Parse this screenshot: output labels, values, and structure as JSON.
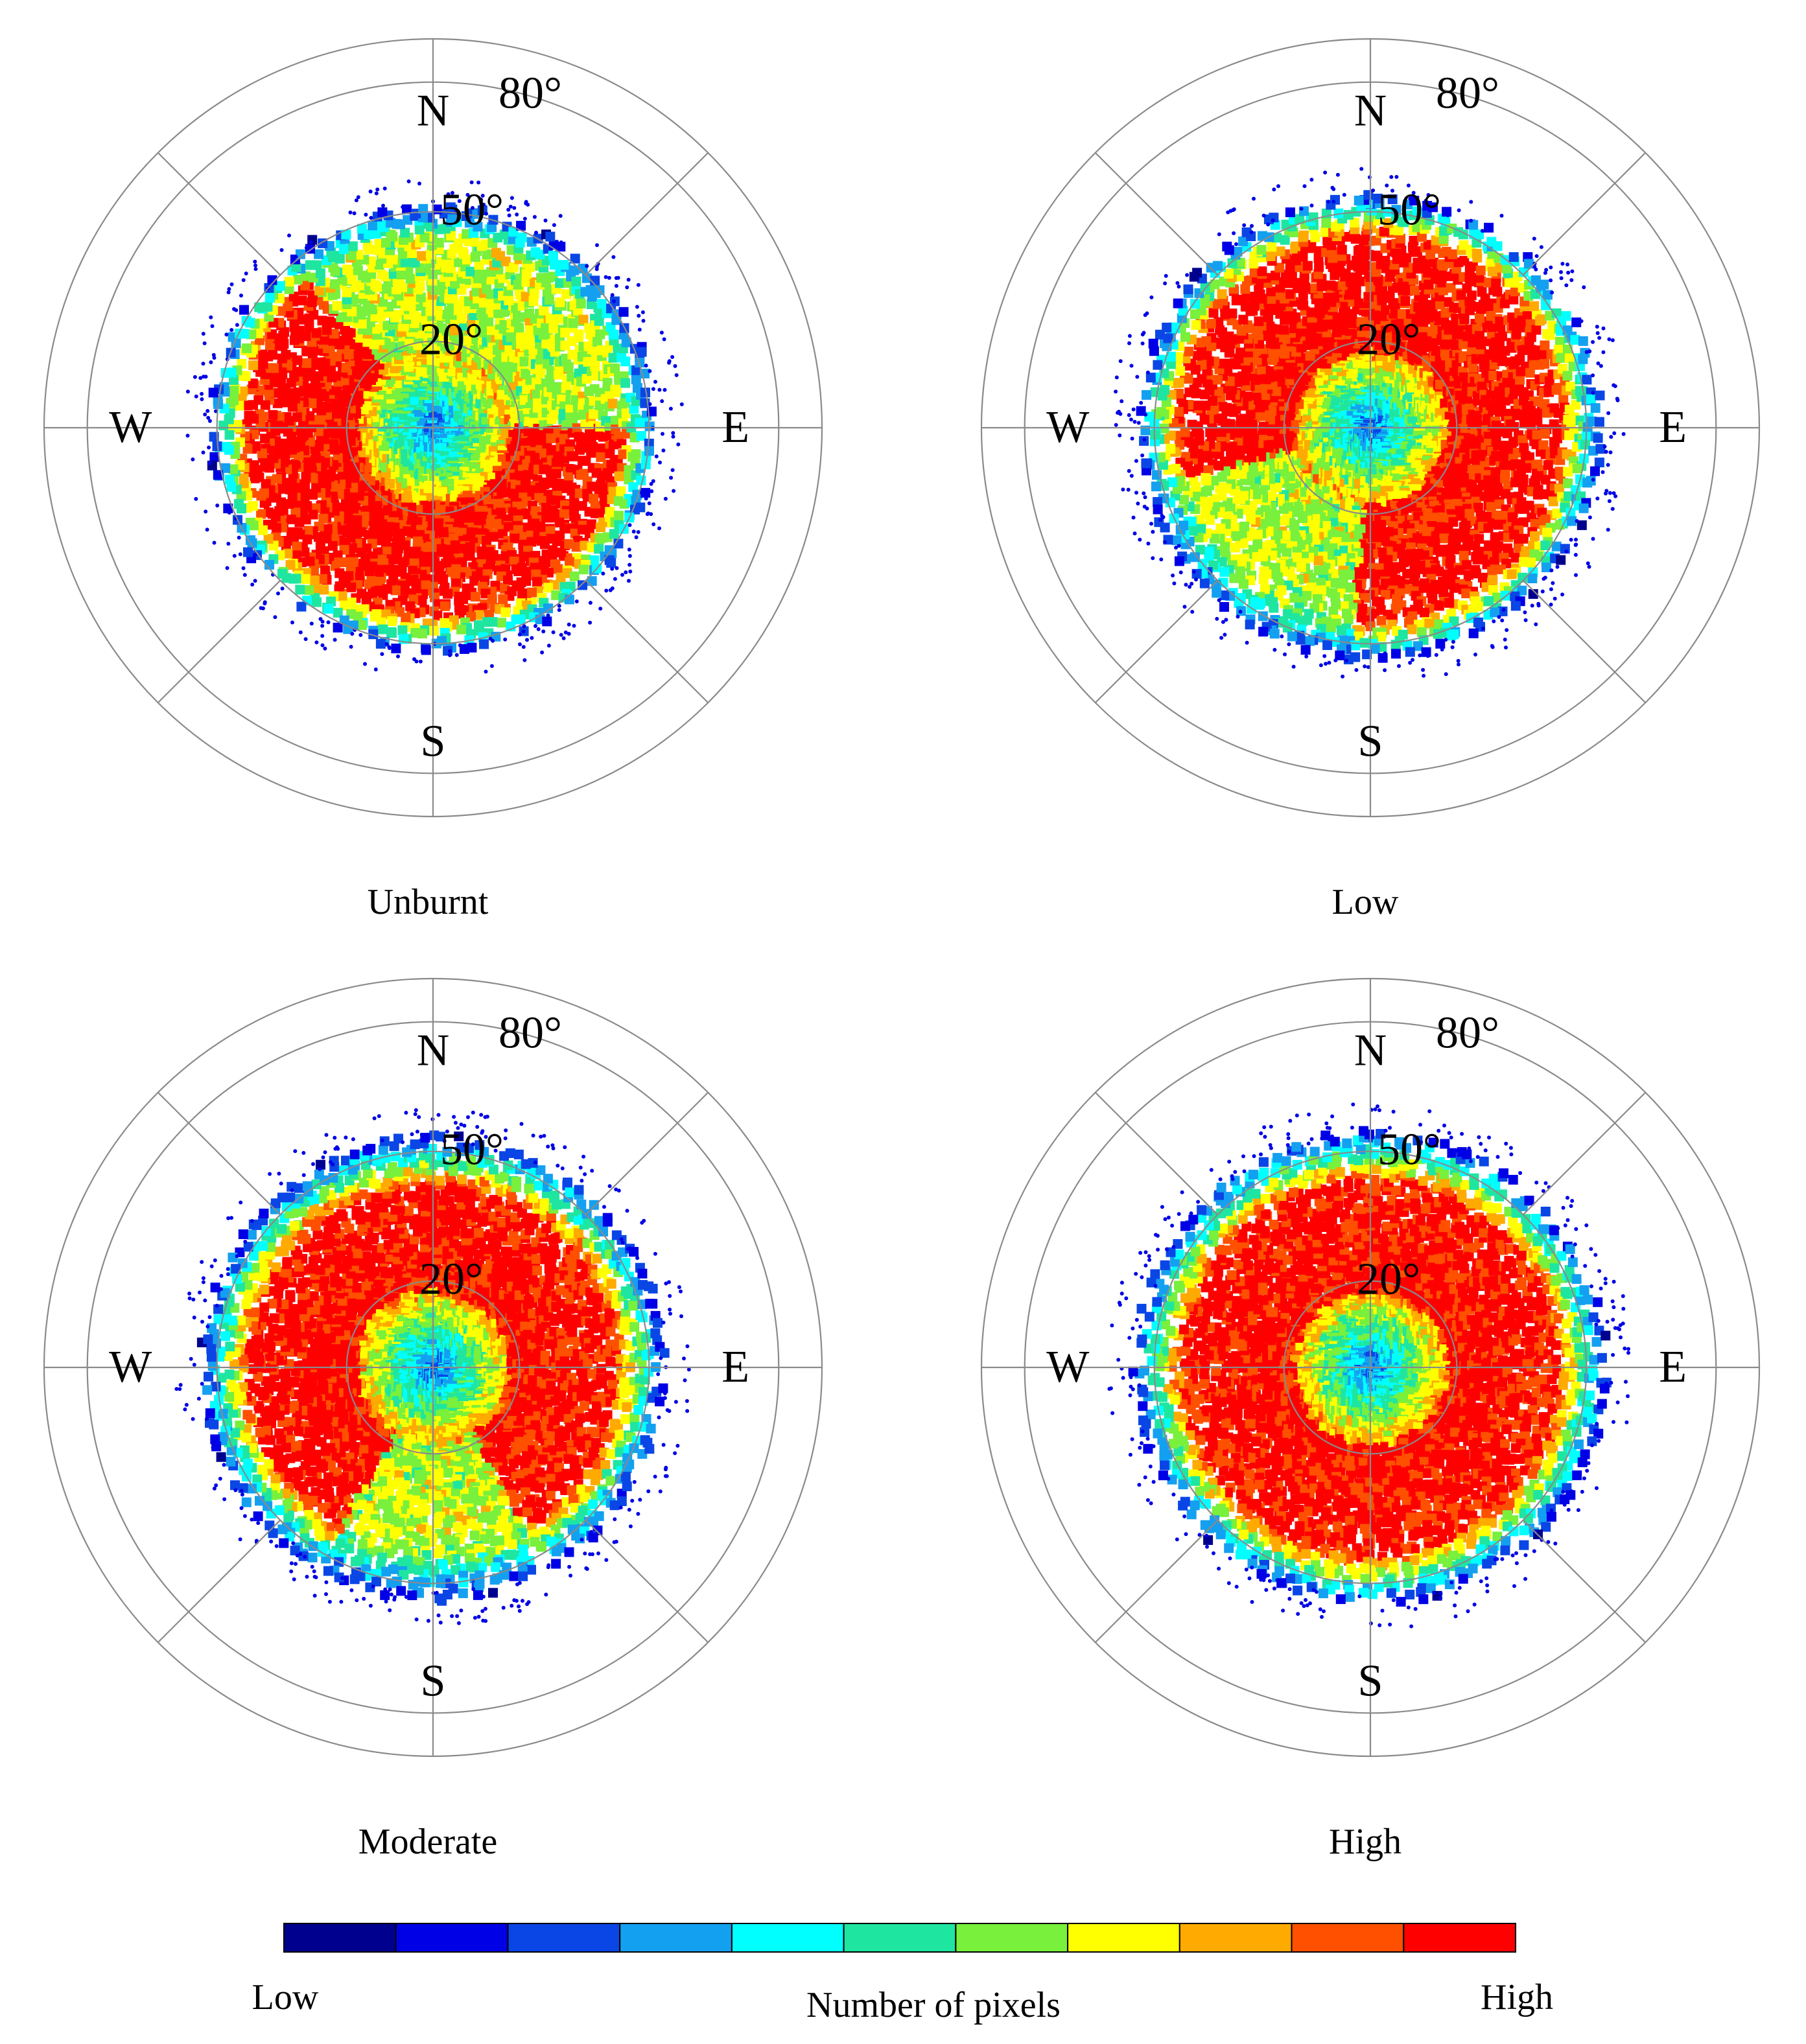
{
  "figure": {
    "panel_order": [
      "Unburnt",
      "Low",
      "Moderate",
      "High"
    ]
  },
  "chart_data": [
    {
      "type": "heatmap",
      "projection": "polar",
      "title": "Unburnt",
      "direction_labels": [
        "N",
        "E",
        "S",
        "W"
      ],
      "ring_labels": [
        "20°",
        "50°",
        "80°"
      ],
      "rings_deg": [
        20,
        50,
        80
      ],
      "radial_range_deg": [
        0,
        90
      ],
      "grid": true,
      "density_levels": 11,
      "hotspot": {
        "shape": "sector",
        "center_deg": 205,
        "width_deg": 230,
        "slope_min": 18,
        "slope_max": 44
      },
      "extent_slope_deg": 52,
      "center_density": "low"
    },
    {
      "type": "heatmap",
      "projection": "polar",
      "title": "Low",
      "direction_labels": [
        "N",
        "E",
        "S",
        "W"
      ],
      "ring_labels": [
        "20°",
        "50°",
        "80°"
      ],
      "rings_deg": [
        20,
        50,
        80
      ],
      "radial_range_deg": [
        0,
        90
      ],
      "grid": true,
      "density_levels": 11,
      "hotspot": {
        "shape": "ring",
        "center_deg": 40,
        "width_deg": 290,
        "slope_min": 18,
        "slope_max": 45
      },
      "extent_slope_deg": 54,
      "center_density": "low"
    },
    {
      "type": "heatmap",
      "projection": "polar",
      "title": "Moderate",
      "direction_labels": [
        "N",
        "E",
        "S",
        "W"
      ],
      "ring_labels": [
        "20°",
        "50°",
        "80°"
      ],
      "rings_deg": [
        20,
        50,
        80
      ],
      "radial_range_deg": [
        0,
        90
      ],
      "grid": true,
      "density_levels": 11,
      "hotspot": {
        "shape": "ring",
        "center_deg": 0,
        "width_deg": 300,
        "slope_min": 18,
        "slope_max": 43
      },
      "extent_slope_deg": 54,
      "center_density": "low"
    },
    {
      "type": "heatmap",
      "projection": "polar",
      "title": "High",
      "direction_labels": [
        "N",
        "E",
        "S",
        "W"
      ],
      "ring_labels": [
        "20°",
        "50°",
        "80°"
      ],
      "rings_deg": [
        20,
        50,
        80
      ],
      "radial_range_deg": [
        0,
        90
      ],
      "grid": true,
      "density_levels": 11,
      "hotspot": {
        "shape": "ring",
        "center_deg": 180,
        "width_deg": 360,
        "slope_min": 18,
        "slope_max": 44
      },
      "extent_slope_deg": 55,
      "center_density": "low"
    }
  ],
  "colorbar": {
    "label": "Number of pixels",
    "low_label": "Low",
    "high_label": "High",
    "colors": [
      "#00008f",
      "#0000e6",
      "#0a46e6",
      "#14a0f0",
      "#00ffff",
      "#1ee6a0",
      "#78f03c",
      "#ffff00",
      "#ffaa00",
      "#ff5000",
      "#ff0000"
    ]
  }
}
